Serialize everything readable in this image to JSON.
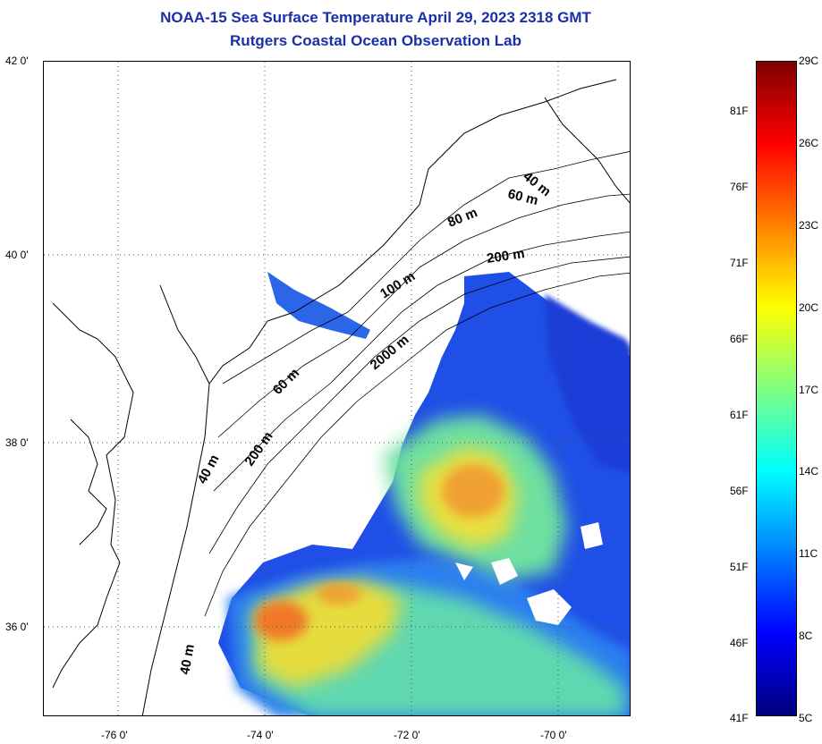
{
  "header": {
    "title": "NOAA-15 Sea Surface Temperature April 29, 2023 2318 GMT",
    "subtitle": "Rutgers Coastal Ocean Observation Lab"
  },
  "map": {
    "lat_ticks": [
      "42 0'",
      "40 0'",
      "38 0'",
      "36 0'"
    ],
    "lon_ticks": [
      "-76 0'",
      "-74 0'",
      "-72 0'",
      "-70 0'"
    ],
    "lon_range": [
      -77.1,
      -69.05
    ],
    "lat_range": [
      35.0,
      42.0
    ],
    "grid": "dotted",
    "depth_labels": [
      "40 m",
      "60 m",
      "80 m",
      "200 m",
      "100 m",
      "2000 m",
      "60 m",
      "200 m",
      "40 m",
      "40 m"
    ]
  },
  "colorbar": {
    "celsius": [
      "29C",
      "26C",
      "23C",
      "20C",
      "17C",
      "14C",
      "11C",
      "8C",
      "5C"
    ],
    "fahrenheit": [
      "81F",
      "76F",
      "71F",
      "66F",
      "61F",
      "56F",
      "51F",
      "46F",
      "41F"
    ],
    "colors": [
      "#7f0000",
      "#ff0000",
      "#ff8000",
      "#ffff00",
      "#80ff80",
      "#00ffff",
      "#0080ff",
      "#0000ff",
      "#00007f"
    ]
  }
}
